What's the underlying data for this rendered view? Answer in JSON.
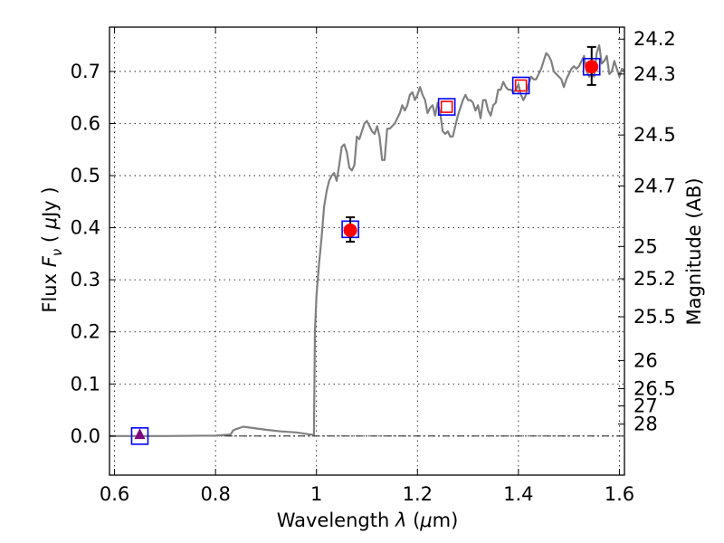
{
  "chart_data": {
    "type": "scatter",
    "title": "",
    "xlabel": "Wavelength  λ (μm)",
    "ylabel": "Flux  F_ν  ( μJy )",
    "ylabel_parts": [
      "Flux ",
      "F",
      "ν",
      "  ( ",
      "μ",
      "Jy )"
    ],
    "xlabel_parts": [
      "Wavelength  ",
      "λ",
      " (",
      "μ",
      "m)"
    ],
    "y2label": "Magnitude (AB)",
    "xlim": [
      0.59,
      1.61
    ],
    "ylim": [
      -0.075,
      0.785
    ],
    "xticks": [
      0.6,
      0.8,
      1.0,
      1.2,
      1.4,
      1.6
    ],
    "xtick_labels": [
      "0.6",
      "0.8",
      "1",
      "1.2",
      "1.4",
      "1.6"
    ],
    "yticks": [
      0.0,
      0.1,
      0.2,
      0.3,
      0.4,
      0.5,
      0.6,
      0.7
    ],
    "ytick_labels": [
      "0.0",
      "0.1",
      "0.2",
      "0.3",
      "0.4",
      "0.5",
      "0.6",
      "0.7"
    ],
    "y2ticks": [
      {
        "label": "24.2",
        "flux": 0.762
      },
      {
        "label": "24.3",
        "flux": 0.695
      },
      {
        "label": "24.5",
        "flux": 0.578
      },
      {
        "label": "24.7",
        "flux": 0.48
      },
      {
        "label": "25",
        "flux": 0.364
      },
      {
        "label": "25.2",
        "flux": 0.302
      },
      {
        "label": "25.5",
        "flux": 0.229
      },
      {
        "label": "26",
        "flux": 0.145
      },
      {
        "label": "26.5",
        "flux": 0.091
      },
      {
        "label": "27",
        "flux": 0.058
      },
      {
        "label": "28",
        "flux": 0.023
      }
    ],
    "grid": true,
    "zero_line": true,
    "series": [
      {
        "kind": "line",
        "color": "#808080",
        "x": [
          0.59,
          0.7,
          0.8,
          0.83,
          0.835,
          0.84,
          0.855,
          0.87,
          0.9,
          0.93,
          0.96,
          0.995,
          0.997,
          1.0,
          1.005,
          1.01,
          1.015,
          1.02,
          1.025,
          1.03,
          1.035,
          1.04,
          1.045,
          1.05,
          1.055,
          1.06,
          1.065,
          1.07,
          1.075,
          1.08,
          1.085,
          1.09,
          1.095,
          1.1,
          1.105,
          1.11,
          1.115,
          1.12,
          1.125,
          1.13,
          1.135,
          1.14,
          1.145,
          1.15,
          1.155,
          1.16,
          1.165,
          1.17,
          1.175,
          1.18,
          1.185,
          1.19,
          1.195,
          1.2,
          1.205,
          1.21,
          1.215,
          1.22,
          1.225,
          1.23,
          1.235,
          1.24,
          1.245,
          1.25,
          1.255,
          1.26,
          1.265,
          1.27,
          1.275,
          1.28,
          1.285,
          1.29,
          1.295,
          1.3,
          1.305,
          1.31,
          1.315,
          1.32,
          1.325,
          1.33,
          1.335,
          1.34,
          1.345,
          1.35,
          1.355,
          1.36,
          1.365,
          1.37,
          1.375,
          1.38,
          1.385,
          1.39,
          1.395,
          1.4,
          1.405,
          1.41,
          1.415,
          1.42,
          1.425,
          1.43,
          1.435,
          1.44,
          1.445,
          1.45,
          1.455,
          1.46,
          1.465,
          1.47,
          1.475,
          1.48,
          1.485,
          1.49,
          1.495,
          1.5,
          1.505,
          1.51,
          1.515,
          1.52,
          1.525,
          1.53,
          1.535,
          1.54,
          1.545,
          1.55,
          1.555,
          1.56,
          1.565,
          1.57,
          1.575,
          1.58,
          1.585,
          1.59,
          1.595,
          1.6,
          1.605,
          1.61
        ],
        "y": [
          0.0,
          0.0,
          0.001,
          0.003,
          0.011,
          0.013,
          0.018,
          0.016,
          0.012,
          0.009,
          0.007,
          0.002,
          0.2,
          0.27,
          0.33,
          0.38,
          0.44,
          0.47,
          0.49,
          0.5,
          0.505,
          0.49,
          0.52,
          0.555,
          0.56,
          0.545,
          0.515,
          0.51,
          0.52,
          0.575,
          0.57,
          0.585,
          0.6,
          0.605,
          0.595,
          0.585,
          0.58,
          0.595,
          0.575,
          0.53,
          0.53,
          0.59,
          0.59,
          0.595,
          0.6,
          0.61,
          0.62,
          0.635,
          0.625,
          0.635,
          0.655,
          0.66,
          0.645,
          0.655,
          0.67,
          0.655,
          0.645,
          0.62,
          0.63,
          0.635,
          0.615,
          0.64,
          0.62,
          0.585,
          0.58,
          0.585,
          0.575,
          0.575,
          0.595,
          0.615,
          0.63,
          0.645,
          0.655,
          0.645,
          0.645,
          0.64,
          0.625,
          0.635,
          0.61,
          0.645,
          0.645,
          0.625,
          0.615,
          0.635,
          0.64,
          0.665,
          0.665,
          0.68,
          0.67,
          0.665,
          0.665,
          0.66,
          0.665,
          0.675,
          0.655,
          0.645,
          0.655,
          0.675,
          0.69,
          0.685,
          0.685,
          0.695,
          0.705,
          0.72,
          0.735,
          0.73,
          0.72,
          0.7,
          0.695,
          0.69,
          0.685,
          0.67,
          0.685,
          0.695,
          0.705,
          0.71,
          0.705,
          0.71,
          0.72,
          0.73,
          0.7,
          0.69,
          0.695,
          0.69,
          0.735,
          0.75,
          0.715,
          0.72,
          0.73,
          0.695,
          0.7,
          0.72,
          0.705,
          0.69,
          0.705,
          0.7
        ]
      },
      {
        "kind": "open_square",
        "color": "#0000ff",
        "x": [
          0.65,
          1.067,
          1.258,
          1.405,
          1.545
        ],
        "y": [
          0.0,
          0.397,
          0.632,
          0.673,
          0.709
        ]
      },
      {
        "kind": "open_square",
        "color": "#ff0000",
        "x": [
          1.258,
          1.405
        ],
        "y": [
          0.632,
          0.673
        ]
      },
      {
        "kind": "filled_circle",
        "color": "#ff0000",
        "x": [
          1.067,
          1.545
        ],
        "y": [
          0.395,
          0.709
        ],
        "yerr_low": [
          0.022,
          0.035
        ],
        "yerr_high": [
          0.025,
          0.038
        ]
      },
      {
        "kind": "filled_triangle",
        "color": "#800080",
        "x": [
          0.65
        ],
        "y": [
          0.003
        ]
      }
    ]
  }
}
